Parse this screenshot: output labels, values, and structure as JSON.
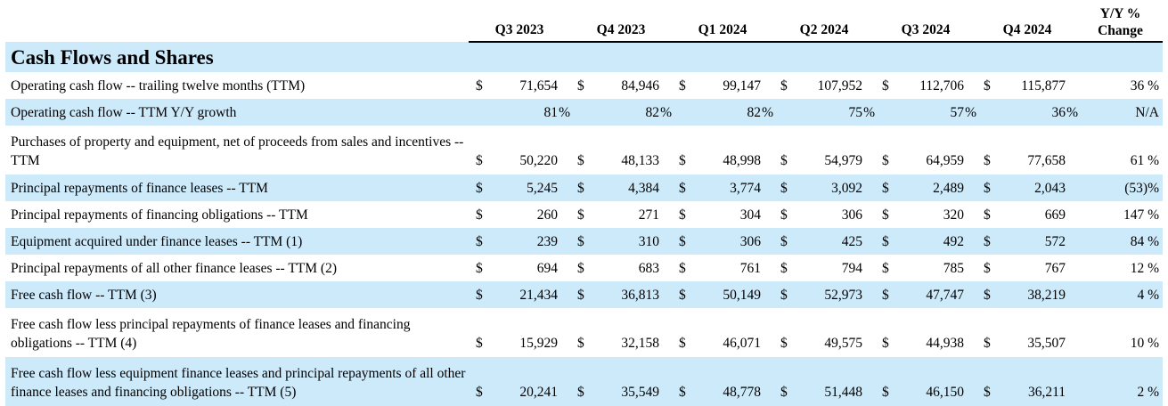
{
  "columns": [
    "Q3 2023",
    "Q4 2023",
    "Q1 2024",
    "Q2 2024",
    "Q3 2024",
    "Q4 2024"
  ],
  "change_header": [
    "Y/Y %",
    "Change"
  ],
  "section_title": "Cash Flows and Shares",
  "currency": "$",
  "rows": [
    {
      "label": "Operating cash flow -- trailing twelve months (TTM)",
      "type": "dollar",
      "values": [
        "71,654",
        "84,946",
        "99,147",
        "107,952",
        "112,706",
        "115,877"
      ],
      "change": "36 %"
    },
    {
      "label": "Operating cash flow -- TTM Y/Y growth",
      "type": "pct",
      "values": [
        "81",
        "82",
        "82",
        "75",
        "57",
        "36"
      ],
      "change": "N/A"
    },
    {
      "label": "Purchases of property and equipment, net of proceeds from sales and incentives -- TTM",
      "type": "dollar",
      "values": [
        "50,220",
        "48,133",
        "48,998",
        "54,979",
        "64,959",
        "77,658"
      ],
      "change": "61 %"
    },
    {
      "label": "Principal repayments of finance leases -- TTM",
      "type": "dollar",
      "values": [
        "5,245",
        "4,384",
        "3,774",
        "3,092",
        "2,489",
        "2,043"
      ],
      "change": "(53)%"
    },
    {
      "label": "Principal repayments of financing obligations -- TTM",
      "type": "dollar",
      "values": [
        "260",
        "271",
        "304",
        "306",
        "320",
        "669"
      ],
      "change": "147 %"
    },
    {
      "label": "Equipment acquired under finance leases -- TTM (1)",
      "type": "dollar",
      "values": [
        "239",
        "310",
        "306",
        "425",
        "492",
        "572"
      ],
      "change": "84 %"
    },
    {
      "label": "Principal repayments of all other finance leases -- TTM (2)",
      "type": "dollar",
      "values": [
        "694",
        "683",
        "761",
        "794",
        "785",
        "767"
      ],
      "change": "12 %"
    },
    {
      "label": "Free cash flow -- TTM (3)",
      "type": "dollar",
      "values": [
        "21,434",
        "36,813",
        "50,149",
        "52,973",
        "47,747",
        "38,219"
      ],
      "change": "4 %"
    },
    {
      "label": "Free cash flow less principal repayments of finance leases and financing obligations -- TTM (4)",
      "type": "dollar",
      "values": [
        "15,929",
        "32,158",
        "46,071",
        "49,575",
        "44,938",
        "35,507"
      ],
      "change": "10 %"
    },
    {
      "label": "Free cash flow less equipment finance leases and principal repayments of all other finance leases and financing obligations -- TTM (5)",
      "type": "dollar",
      "values": [
        "20,241",
        "35,549",
        "48,778",
        "51,448",
        "46,150",
        "36,211"
      ],
      "change": "2 %"
    }
  ]
}
